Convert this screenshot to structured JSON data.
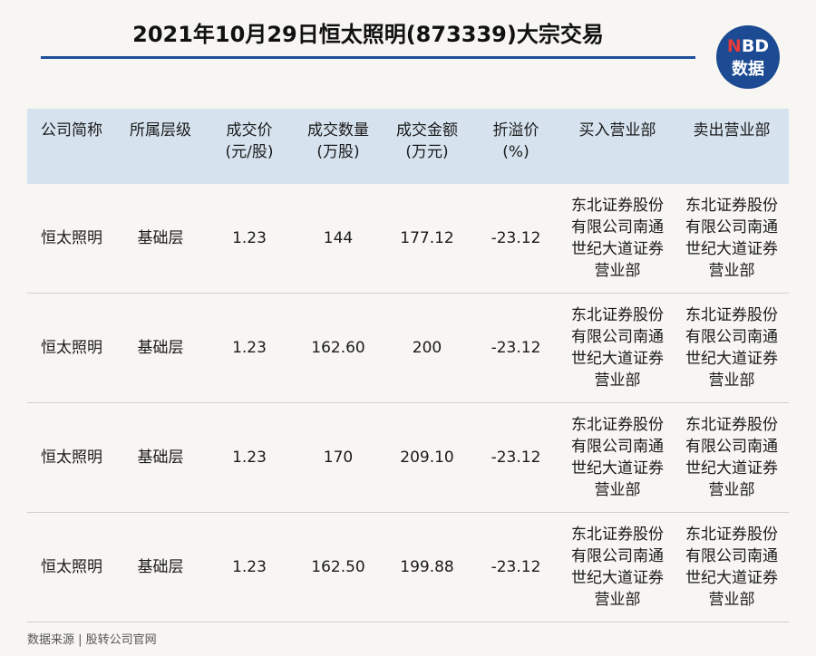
{
  "title": "2021年10月29日恒太照明(873339)大宗交易",
  "logo": {
    "n": "N",
    "bd": "BD",
    "line2": "数据"
  },
  "table": {
    "headers": [
      [
        "公司简称"
      ],
      [
        "所属层级"
      ],
      [
        "成交价",
        "(元/股)"
      ],
      [
        "成交数量",
        "(万股)"
      ],
      [
        "成交金额",
        "(万元)"
      ],
      [
        "折溢价",
        "(%)"
      ],
      [
        "买入营业部"
      ],
      [
        "卖出营业部"
      ]
    ],
    "rows": [
      [
        "恒太照明",
        "基础层",
        "1.23",
        "144",
        "177.12",
        "-23.12",
        "东北证券股份有限公司南通世纪大道证券营业部",
        "东北证券股份有限公司南通世纪大道证券营业部"
      ],
      [
        "恒太照明",
        "基础层",
        "1.23",
        "162.60",
        "200",
        "-23.12",
        "东北证券股份有限公司南通世纪大道证券营业部",
        "东北证券股份有限公司南通世纪大道证券营业部"
      ],
      [
        "恒太照明",
        "基础层",
        "1.23",
        "170",
        "209.10",
        "-23.12",
        "东北证券股份有限公司南通世纪大道证券营业部",
        "东北证券股份有限公司南通世纪大道证券营业部"
      ],
      [
        "恒太照明",
        "基础层",
        "1.23",
        "162.50",
        "199.88",
        "-23.12",
        "东北证券股份有限公司南通世纪大道证券营业部",
        "东北证券股份有限公司南通世纪大道证券营业部"
      ]
    ]
  },
  "source": "数据来源 | 股转公司官网"
}
